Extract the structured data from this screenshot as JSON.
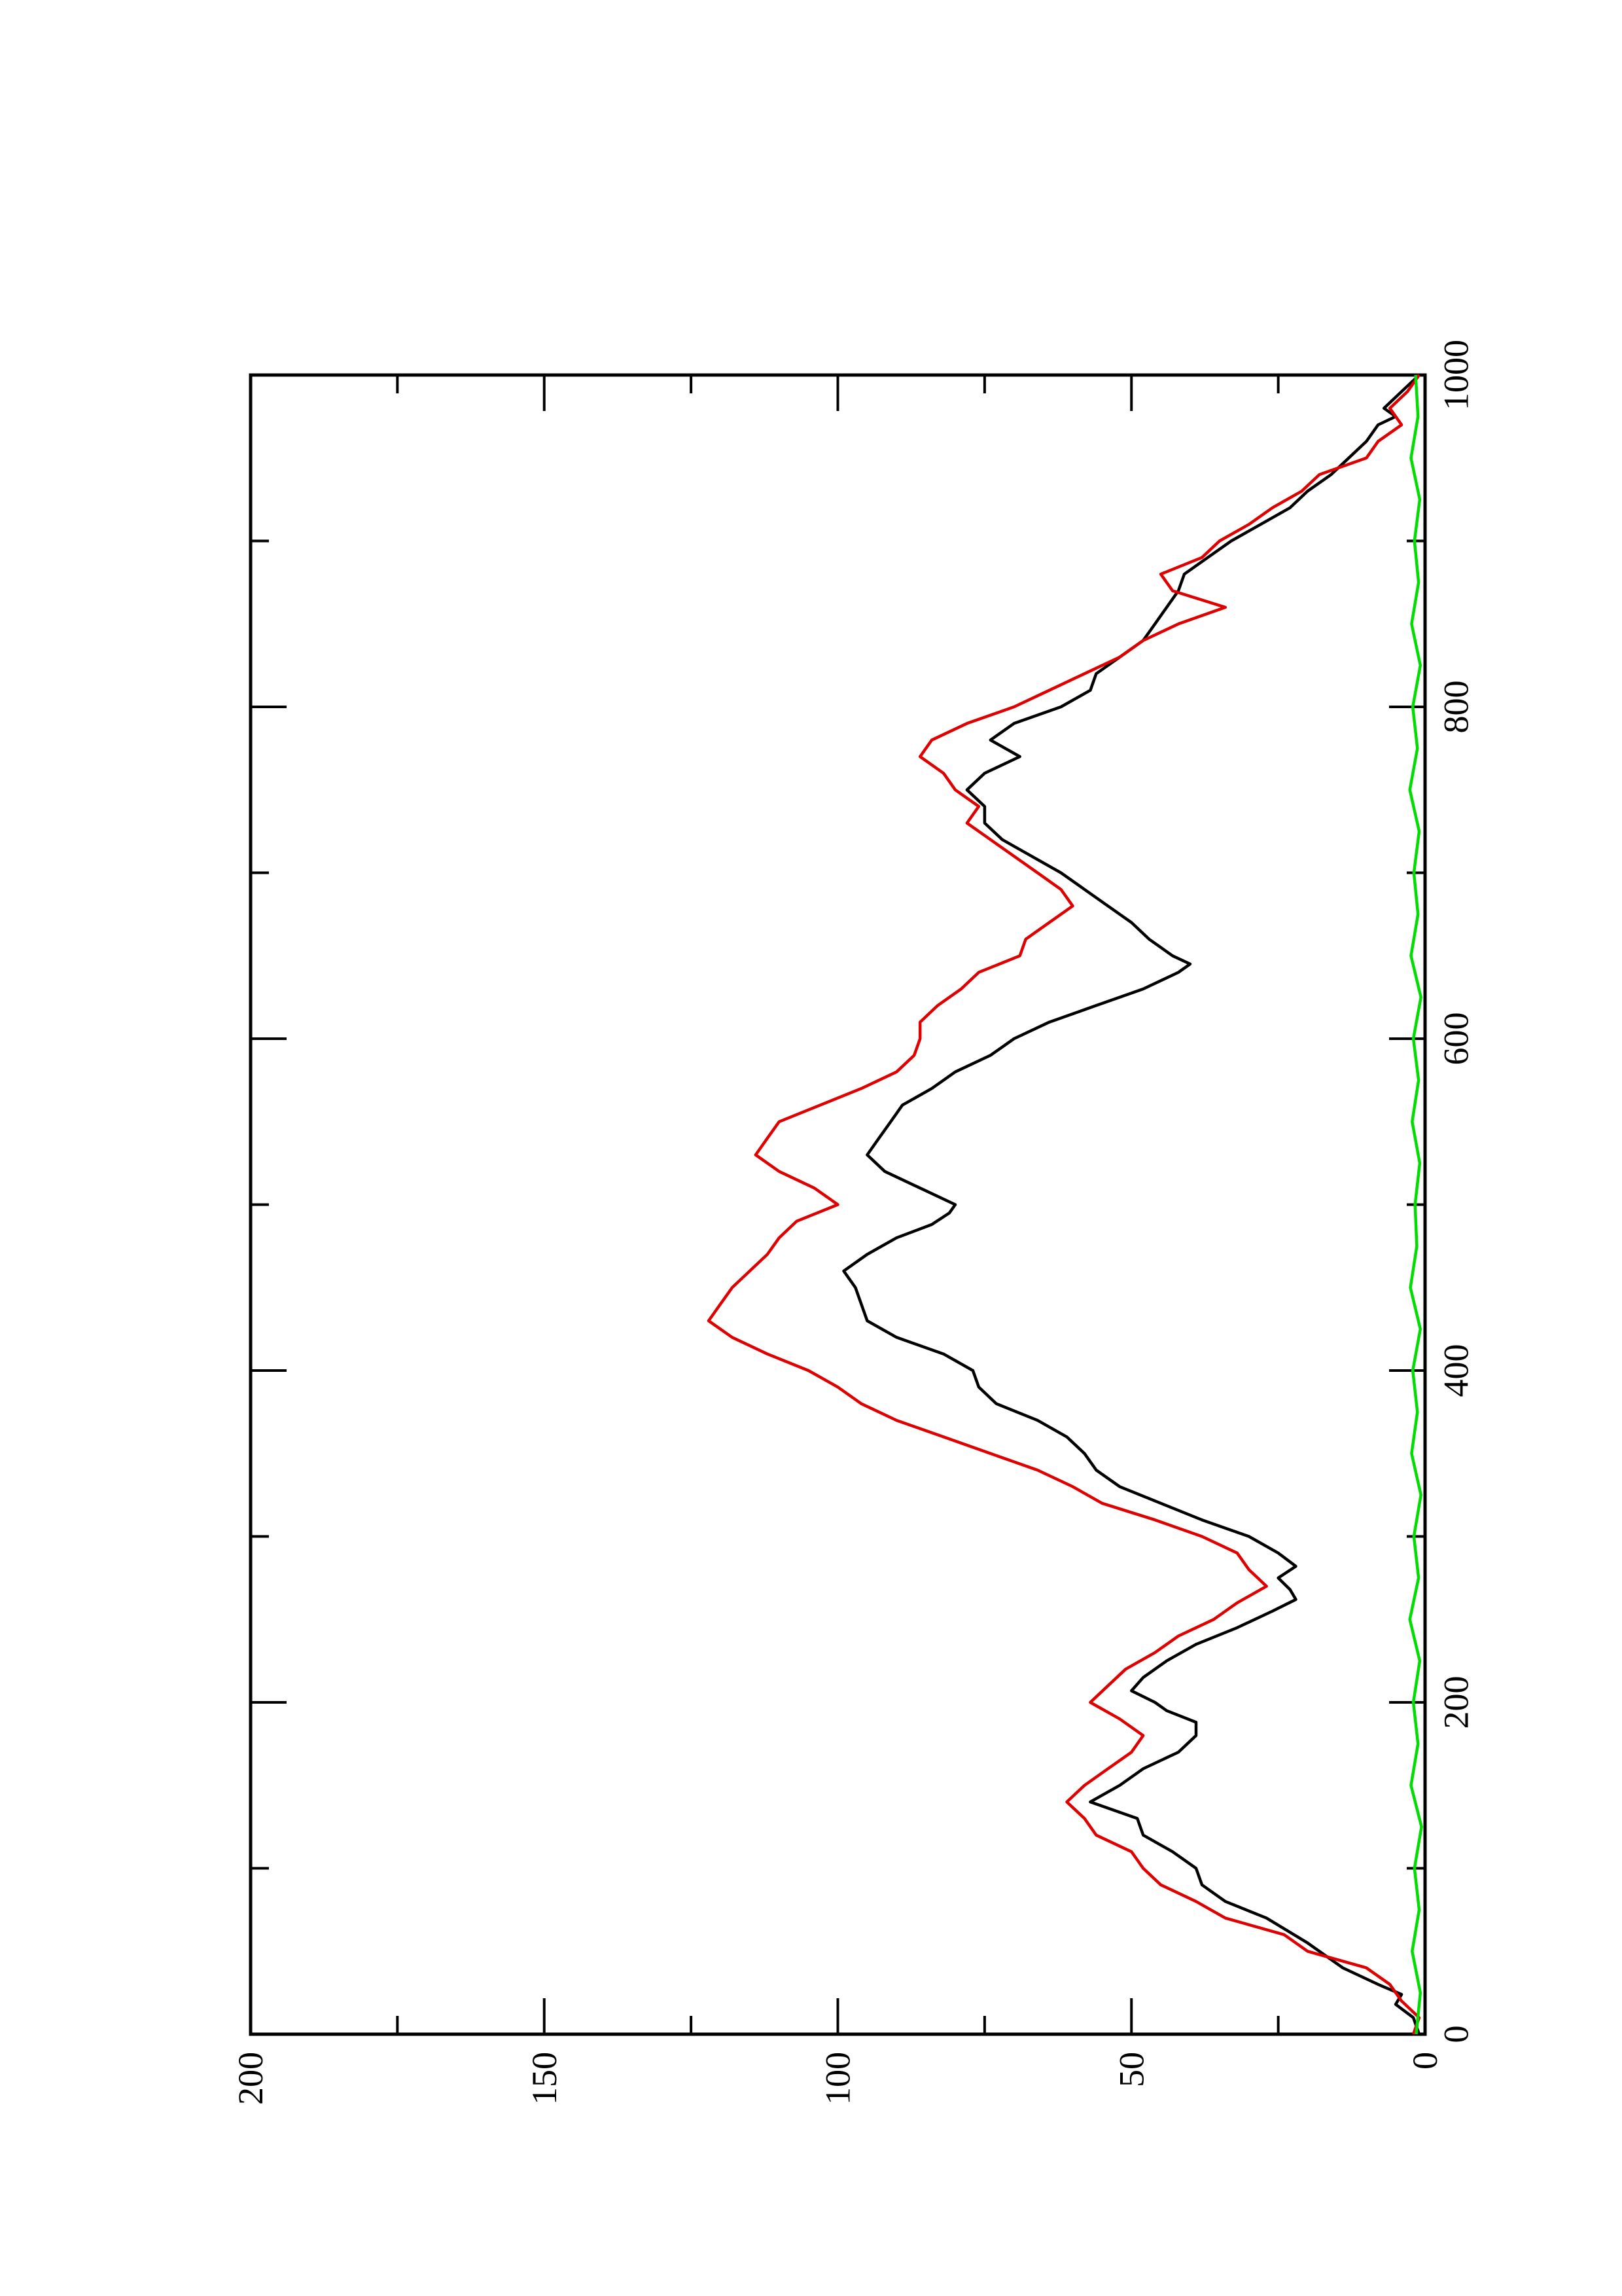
{
  "chart_data": {
    "type": "line",
    "title": "",
    "xlabel": "",
    "ylabel": "",
    "orientation": "rotated-90-ccw",
    "xlim": [
      0,
      1000
    ],
    "ylim": [
      0,
      200
    ],
    "x_ticks": [
      "0",
      "200",
      "400",
      "600",
      "800",
      "1000"
    ],
    "y_ticks": [
      "0",
      "50",
      "100",
      "150",
      "200"
    ],
    "grid": false,
    "legend": "none",
    "series": [
      {
        "color": "#000000",
        "points": [
          [
            0,
            1
          ],
          [
            10,
            2
          ],
          [
            18,
            5
          ],
          [
            24,
            4
          ],
          [
            30,
            8
          ],
          [
            40,
            14
          ],
          [
            55,
            20
          ],
          [
            70,
            27
          ],
          [
            80,
            34
          ],
          [
            90,
            38
          ],
          [
            100,
            39
          ],
          [
            110,
            43
          ],
          [
            120,
            48
          ],
          [
            130,
            49
          ],
          [
            140,
            57
          ],
          [
            150,
            52
          ],
          [
            160,
            48
          ],
          [
            170,
            42
          ],
          [
            180,
            39
          ],
          [
            188,
            39
          ],
          [
            195,
            44
          ],
          [
            200,
            46
          ],
          [
            207,
            50
          ],
          [
            215,
            48
          ],
          [
            225,
            44
          ],
          [
            235,
            39
          ],
          [
            245,
            32
          ],
          [
            255,
            26
          ],
          [
            262,
            22
          ],
          [
            268,
            23
          ],
          [
            275,
            25
          ],
          [
            282,
            22
          ],
          [
            290,
            25
          ],
          [
            300,
            30
          ],
          [
            310,
            38
          ],
          [
            320,
            45
          ],
          [
            330,
            52
          ],
          [
            340,
            56
          ],
          [
            350,
            58
          ],
          [
            360,
            61
          ],
          [
            370,
            66
          ],
          [
            380,
            73
          ],
          [
            390,
            76
          ],
          [
            400,
            77
          ],
          [
            410,
            82
          ],
          [
            420,
            90
          ],
          [
            430,
            95
          ],
          [
            440,
            96
          ],
          [
            450,
            97
          ],
          [
            460,
            99
          ],
          [
            470,
            95
          ],
          [
            480,
            90
          ],
          [
            488,
            84
          ],
          [
            495,
            81
          ],
          [
            500,
            80
          ],
          [
            510,
            86
          ],
          [
            520,
            92
          ],
          [
            530,
            95
          ],
          [
            540,
            93
          ],
          [
            550,
            91
          ],
          [
            560,
            89
          ],
          [
            570,
            84
          ],
          [
            580,
            80
          ],
          [
            590,
            74
          ],
          [
            600,
            70
          ],
          [
            610,
            64
          ],
          [
            620,
            56
          ],
          [
            630,
            48
          ],
          [
            640,
            42
          ],
          [
            645,
            40
          ],
          [
            650,
            43
          ],
          [
            660,
            47
          ],
          [
            670,
            50
          ],
          [
            680,
            54
          ],
          [
            690,
            58
          ],
          [
            700,
            62
          ],
          [
            710,
            67
          ],
          [
            720,
            72
          ],
          [
            730,
            75
          ],
          [
            740,
            75
          ],
          [
            750,
            78
          ],
          [
            760,
            75
          ],
          [
            770,
            69
          ],
          [
            780,
            74
          ],
          [
            790,
            70
          ],
          [
            800,
            62
          ],
          [
            810,
            57
          ],
          [
            820,
            56
          ],
          [
            830,
            52
          ],
          [
            840,
            48
          ],
          [
            850,
            46
          ],
          [
            860,
            44
          ],
          [
            870,
            42
          ],
          [
            880,
            41
          ],
          [
            890,
            37
          ],
          [
            900,
            33
          ],
          [
            910,
            28
          ],
          [
            920,
            23
          ],
          [
            930,
            20
          ],
          [
            940,
            16
          ],
          [
            950,
            13
          ],
          [
            960,
            10
          ],
          [
            970,
            8
          ],
          [
            975,
            5
          ],
          [
            980,
            7
          ],
          [
            990,
            4
          ],
          [
            1000,
            1
          ]
        ]
      },
      {
        "color": "#e00000",
        "points": [
          [
            0,
            2
          ],
          [
            10,
            1
          ],
          [
            20,
            4
          ],
          [
            30,
            6
          ],
          [
            40,
            10
          ],
          [
            45,
            15
          ],
          [
            50,
            20
          ],
          [
            60,
            24
          ],
          [
            70,
            34
          ],
          [
            80,
            39
          ],
          [
            90,
            45
          ],
          [
            100,
            48
          ],
          [
            110,
            50
          ],
          [
            120,
            56
          ],
          [
            130,
            58
          ],
          [
            140,
            61
          ],
          [
            150,
            58
          ],
          [
            160,
            54
          ],
          [
            170,
            50
          ],
          [
            180,
            48
          ],
          [
            190,
            52
          ],
          [
            200,
            57
          ],
          [
            210,
            54
          ],
          [
            220,
            51
          ],
          [
            230,
            46
          ],
          [
            240,
            42
          ],
          [
            250,
            36
          ],
          [
            260,
            32
          ],
          [
            270,
            27
          ],
          [
            280,
            30
          ],
          [
            290,
            32
          ],
          [
            300,
            38
          ],
          [
            310,
            46
          ],
          [
            320,
            55
          ],
          [
            330,
            60
          ],
          [
            340,
            66
          ],
          [
            350,
            74
          ],
          [
            360,
            82
          ],
          [
            370,
            90
          ],
          [
            380,
            96
          ],
          [
            390,
            100
          ],
          [
            400,
            105
          ],
          [
            410,
            112
          ],
          [
            420,
            118
          ],
          [
            430,
            122
          ],
          [
            440,
            120
          ],
          [
            450,
            118
          ],
          [
            460,
            115
          ],
          [
            470,
            112
          ],
          [
            480,
            110
          ],
          [
            490,
            107
          ],
          [
            500,
            100
          ],
          [
            510,
            104
          ],
          [
            520,
            110
          ],
          [
            530,
            114
          ],
          [
            540,
            112
          ],
          [
            550,
            110
          ],
          [
            560,
            103
          ],
          [
            570,
            96
          ],
          [
            580,
            90
          ],
          [
            590,
            87
          ],
          [
            600,
            86
          ],
          [
            610,
            86
          ],
          [
            620,
            83
          ],
          [
            630,
            79
          ],
          [
            640,
            76
          ],
          [
            650,
            69
          ],
          [
            660,
            68
          ],
          [
            670,
            64
          ],
          [
            680,
            60
          ],
          [
            690,
            62
          ],
          [
            700,
            66
          ],
          [
            710,
            70
          ],
          [
            720,
            74
          ],
          [
            730,
            78
          ],
          [
            740,
            76
          ],
          [
            750,
            80
          ],
          [
            760,
            82
          ],
          [
            770,
            86
          ],
          [
            780,
            84
          ],
          [
            790,
            78
          ],
          [
            800,
            70
          ],
          [
            810,
            64
          ],
          [
            820,
            58
          ],
          [
            830,
            52
          ],
          [
            840,
            48
          ],
          [
            850,
            42
          ],
          [
            860,
            34
          ],
          [
            870,
            43
          ],
          [
            880,
            45
          ],
          [
            890,
            38
          ],
          [
            900,
            35
          ],
          [
            910,
            30
          ],
          [
            920,
            26
          ],
          [
            930,
            21
          ],
          [
            940,
            18
          ],
          [
            950,
            10
          ],
          [
            960,
            8
          ],
          [
            970,
            4
          ],
          [
            980,
            6
          ],
          [
            990,
            3
          ],
          [
            1000,
            1
          ]
        ]
      },
      {
        "color": "#00dd00",
        "points": [
          [
            0,
            1.5
          ],
          [
            25,
            0.8
          ],
          [
            50,
            2.2
          ],
          [
            75,
            1
          ],
          [
            100,
            1.8
          ],
          [
            125,
            0.6
          ],
          [
            150,
            2.4
          ],
          [
            175,
            1.2
          ],
          [
            200,
            2
          ],
          [
            225,
            0.9
          ],
          [
            250,
            2.6
          ],
          [
            275,
            1.1
          ],
          [
            300,
            1.9
          ],
          [
            325,
            0.7
          ],
          [
            350,
            2.3
          ],
          [
            375,
            1.3
          ],
          [
            400,
            2.1
          ],
          [
            425,
            0.8
          ],
          [
            450,
            2.5
          ],
          [
            475,
            1.4
          ],
          [
            500,
            1.7
          ],
          [
            525,
            0.9
          ],
          [
            550,
            2.2
          ],
          [
            575,
            1.1
          ],
          [
            600,
            2
          ],
          [
            625,
            0.7
          ],
          [
            650,
            2.4
          ],
          [
            675,
            1.2
          ],
          [
            700,
            1.9
          ],
          [
            725,
            1
          ],
          [
            750,
            2.6
          ],
          [
            775,
            1.3
          ],
          [
            800,
            2.1
          ],
          [
            825,
            0.8
          ],
          [
            850,
            2.3
          ],
          [
            875,
            1.1
          ],
          [
            900,
            1.8
          ],
          [
            925,
            0.9
          ],
          [
            950,
            2.4
          ],
          [
            975,
            1.2
          ],
          [
            1000,
            1.6
          ]
        ]
      }
    ]
  }
}
